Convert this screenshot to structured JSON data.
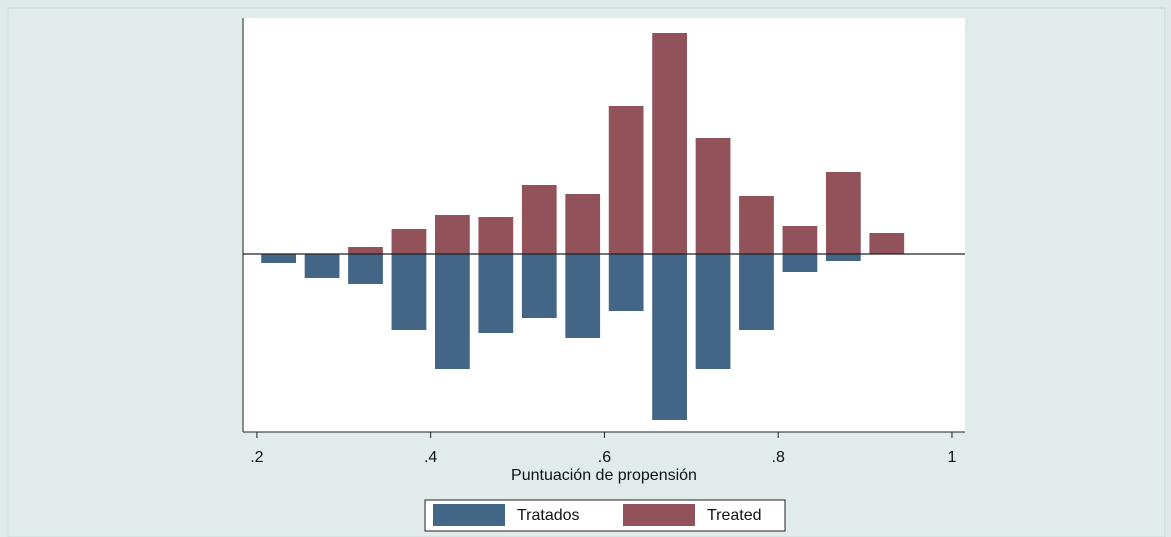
{
  "chart_data": {
    "type": "bar",
    "x_label": "Puntuación de propensión",
    "x": [
      0.225,
      0.275,
      0.325,
      0.375,
      0.425,
      0.475,
      0.525,
      0.575,
      0.625,
      0.675,
      0.725,
      0.775,
      0.825,
      0.875,
      0.925
    ],
    "series": [
      {
        "name": "Tratados",
        "color": "#436586",
        "values": [
          -9,
          -24,
          -30,
          -76,
          -115,
          -79,
          -64,
          -84,
          -57,
          -166,
          -115,
          -76,
          -18,
          -7,
          null
        ]
      },
      {
        "name": "Treated",
        "color": "#92525a",
        "values": [
          null,
          null,
          7,
          25,
          39,
          37,
          69,
          60,
          148,
          221,
          116,
          58,
          28,
          82,
          21
        ]
      }
    ],
    "xlim": [
      0.184,
      1.015
    ],
    "xticks": [
      {
        "value": 0.2,
        "label": ".2"
      },
      {
        "value": 0.4,
        "label": ".4"
      },
      {
        "value": 0.6,
        "label": ".6"
      },
      {
        "value": 0.8,
        "label": ".8"
      },
      1
    ],
    "ylim": [
      -178,
      236
    ],
    "legend": "bottom"
  }
}
